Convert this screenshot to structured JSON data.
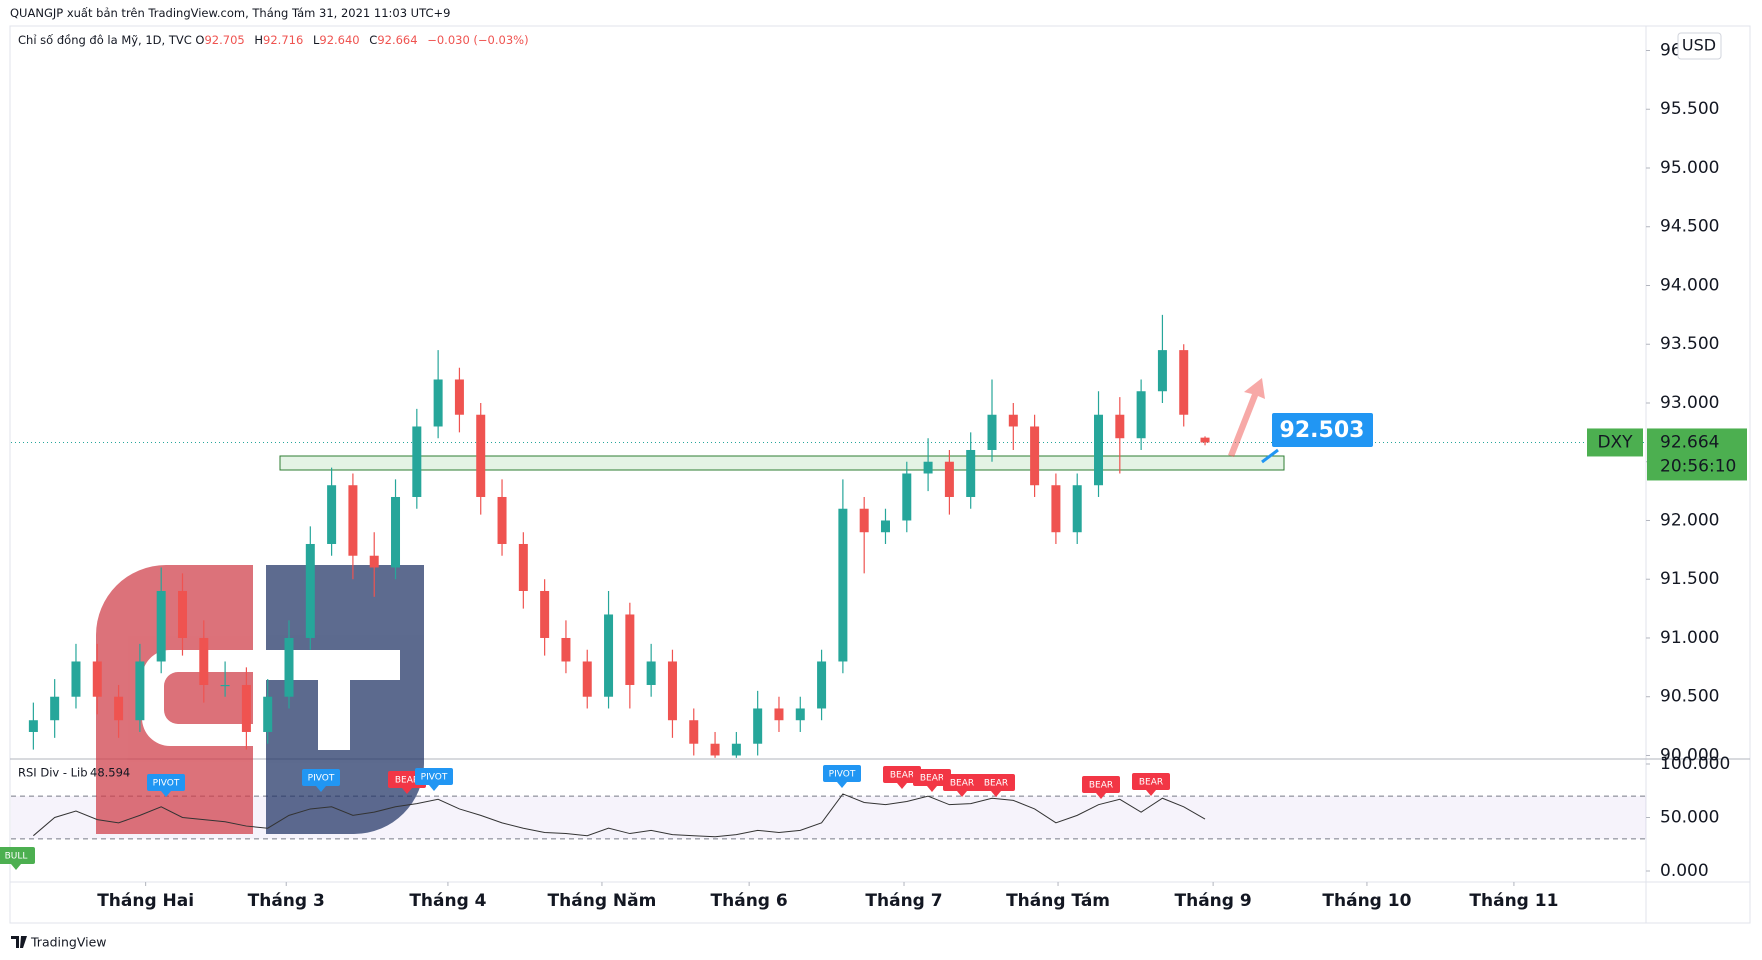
{
  "header": {
    "publisher": "QUANGJP xuất bản trên TradingView.com, Tháng Tám 31, 2021 11:03 UTC+9"
  },
  "chart_data": [
    {
      "type": "candlestick",
      "title": "Chỉ số đồng đô la Mỹ, 1D, TVC",
      "legend": [
        {
          "key": "O",
          "value": "92.705"
        },
        {
          "key": "H",
          "value": "92.716"
        },
        {
          "key": "L",
          "value": "92.640"
        },
        {
          "key": "C",
          "value": "92.664"
        }
      ],
      "change": "−0.030 (−0.03%)",
      "symbol": "DXY",
      "currency": "USD",
      "last_price_label": "92.664",
      "countdown": "20:56:10",
      "annotation": "92.503",
      "up_color": "#26a69a",
      "down_color": "#ef5350",
      "open": [
        90.2,
        90.3,
        90.5,
        90.8,
        90.5,
        90.3,
        90.8,
        91.4,
        91.0,
        90.6,
        90.6,
        90.2,
        90.5,
        91.0,
        91.8,
        92.3,
        91.7,
        91.6,
        92.2,
        92.8,
        93.2,
        92.9,
        92.2,
        91.8,
        91.4,
        91.0,
        90.8,
        90.5,
        91.2,
        90.6,
        90.8,
        90.3,
        90.1,
        90.0,
        90.1,
        90.4,
        90.3,
        90.4,
        90.8,
        92.1,
        91.9,
        92.0,
        92.4,
        92.5,
        92.2,
        92.6,
        92.9,
        92.8,
        92.3,
        91.9,
        92.3,
        92.9,
        92.7,
        93.1,
        93.45,
        92.705
      ],
      "high": [
        90.45,
        90.65,
        90.95,
        90.95,
        90.6,
        90.95,
        91.6,
        91.55,
        91.15,
        90.8,
        90.75,
        90.65,
        91.15,
        91.95,
        92.45,
        92.4,
        91.9,
        92.35,
        92.95,
        93.45,
        93.3,
        93.0,
        92.35,
        91.9,
        91.5,
        91.15,
        90.9,
        91.4,
        91.3,
        90.95,
        90.9,
        90.4,
        90.2,
        90.2,
        90.55,
        90.5,
        90.5,
        90.9,
        92.35,
        92.2,
        92.1,
        92.5,
        92.7,
        92.6,
        92.75,
        93.2,
        93.0,
        92.9,
        92.4,
        92.4,
        93.1,
        93.05,
        93.2,
        93.75,
        93.5,
        92.716
      ],
      "low": [
        90.05,
        90.15,
        90.4,
        90.35,
        90.15,
        90.2,
        90.7,
        90.85,
        90.45,
        90.5,
        90.05,
        90.1,
        90.4,
        90.9,
        91.7,
        91.5,
        91.35,
        91.5,
        92.1,
        92.7,
        92.75,
        92.05,
        91.7,
        91.25,
        90.85,
        90.7,
        90.4,
        90.4,
        90.4,
        90.5,
        90.15,
        90.0,
        89.98,
        89.98,
        90.0,
        90.2,
        90.2,
        90.3,
        90.7,
        91.55,
        91.8,
        91.9,
        92.25,
        92.05,
        92.1,
        92.5,
        92.6,
        92.2,
        91.8,
        91.8,
        92.2,
        92.4,
        92.6,
        93.0,
        92.8,
        92.64
      ],
      "close": [
        90.3,
        90.5,
        90.8,
        90.5,
        90.3,
        90.8,
        91.4,
        91.0,
        90.6,
        90.6,
        90.2,
        90.5,
        91.0,
        91.8,
        92.3,
        91.7,
        91.6,
        92.2,
        92.8,
        93.2,
        92.9,
        92.2,
        91.8,
        91.4,
        91.0,
        90.8,
        90.5,
        91.2,
        90.6,
        90.8,
        90.3,
        90.1,
        90.0,
        90.1,
        90.4,
        90.3,
        90.4,
        90.8,
        92.1,
        91.9,
        92.0,
        92.4,
        92.5,
        92.2,
        92.6,
        92.9,
        92.8,
        92.3,
        91.9,
        92.3,
        92.9,
        92.7,
        93.1,
        93.45,
        92.9,
        92.664
      ],
      "ylim": [
        89.97,
        96.2
      ],
      "yticks": [
        {
          "value": 90,
          "label": "90.000"
        },
        {
          "value": 90.5,
          "label": "90.500"
        },
        {
          "value": 91,
          "label": "91.000"
        },
        {
          "value": 91.5,
          "label": "91.500"
        },
        {
          "value": 92,
          "label": "92.000"
        },
        {
          "value": 92.5,
          "label": "92.500"
        },
        {
          "value": 93,
          "label": "93.000"
        },
        {
          "value": 93.5,
          "label": "93.500"
        },
        {
          "value": 94,
          "label": "94.000"
        },
        {
          "value": 94.5,
          "label": "94.500"
        },
        {
          "value": 95,
          "label": "95.000"
        },
        {
          "value": 95.5,
          "label": "95.500"
        },
        {
          "value": 96,
          "label": "96.000"
        }
      ],
      "xlim": [
        -1.05,
        75.7
      ],
      "xticks": [
        {
          "value": 5.27,
          "label": "Tháng Hai"
        },
        {
          "value": 11.87,
          "label": "Tháng 3"
        },
        {
          "value": 19.46,
          "label": "Tháng 4"
        },
        {
          "value": 26.69,
          "label": "Tháng Năm"
        },
        {
          "value": 33.6,
          "label": "Tháng 6"
        },
        {
          "value": 40.87,
          "label": "Tháng 7"
        },
        {
          "value": 48.1,
          "label": "Tháng Tám"
        },
        {
          "value": 55.38,
          "label": "Tháng 9"
        },
        {
          "value": 62.6,
          "label": "Tháng 10"
        },
        {
          "value": 69.5,
          "label": "Tháng 11"
        }
      ],
      "grid": false
    },
    {
      "type": "line",
      "title": "RSI Div - Lib",
      "last_value_label": "48.594",
      "color": "#333333",
      "values": [
        33,
        50,
        56,
        48,
        45,
        52,
        60,
        50,
        48,
        46,
        42,
        40,
        52,
        58,
        60,
        52,
        55,
        60,
        63,
        67,
        58,
        52,
        45,
        40,
        36,
        35,
        33,
        40,
        35,
        38,
        34,
        33,
        32,
        34,
        38,
        36,
        38,
        45,
        72,
        64,
        62,
        65,
        70,
        62,
        63,
        68,
        66,
        58,
        45,
        52,
        62,
        67,
        55,
        68,
        60,
        48.594
      ],
      "ylim": [
        0,
        100
      ],
      "yticks": [
        {
          "value": 0,
          "label": "0.000"
        },
        {
          "value": 50,
          "label": "50.000"
        },
        {
          "value": 100,
          "label": "100.000"
        }
      ],
      "bands": [
        30,
        70
      ],
      "signals": [
        "PIVOT",
        "PIVOT",
        "BEAR",
        "PIVOT",
        "PIVOT",
        "BEAR",
        "BEAR",
        "BEAR",
        "BEAR",
        "BEAR",
        "BEAR",
        "BULL"
      ]
    }
  ],
  "footer": {
    "brand": "TradingView"
  }
}
